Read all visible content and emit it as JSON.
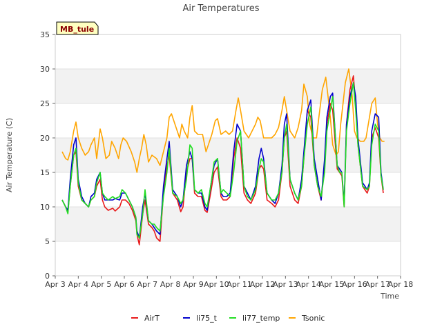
{
  "chart_data": {
    "type": "line",
    "title": "Air Temperatures",
    "xlabel": "Time",
    "ylabel": "Air Temperature (C)",
    "tag": "MB_tule",
    "xlim": [
      3,
      18
    ],
    "ylim": [
      0,
      35
    ],
    "y_ticks": [
      0,
      5,
      10,
      15,
      20,
      25,
      30,
      35
    ],
    "x_ticks": [
      {
        "value": 3,
        "label": "Apr 3"
      },
      {
        "value": 4,
        "label": "Apr 4"
      },
      {
        "value": 5,
        "label": "Apr 5"
      },
      {
        "value": 6,
        "label": "Apr 6"
      },
      {
        "value": 7,
        "label": "Apr 7"
      },
      {
        "value": 8,
        "label": "Apr 8"
      },
      {
        "value": 9,
        "label": "Apr 9"
      },
      {
        "value": 10,
        "label": "Apr 10"
      },
      {
        "value": 11,
        "label": "Apr 11"
      },
      {
        "value": 12,
        "label": "Apr 12"
      },
      {
        "value": 13,
        "label": "Apr 13"
      },
      {
        "value": 14,
        "label": "Apr 14"
      },
      {
        "value": 15,
        "label": "Apr 15"
      },
      {
        "value": 16,
        "label": "Apr 16"
      },
      {
        "value": 17,
        "label": "Apr 17"
      },
      {
        "value": 18,
        "label": "Apr 18"
      }
    ],
    "grid": "horizontal bands",
    "legend_position": "bottom",
    "series": [
      {
        "name": "AirT",
        "color": "#e8191a",
        "x": [
          3.3,
          3.45,
          3.55,
          3.65,
          3.8,
          3.9,
          4.0,
          4.15,
          4.3,
          4.45,
          4.55,
          4.7,
          4.8,
          4.95,
          5.05,
          5.15,
          5.3,
          5.5,
          5.6,
          5.8,
          5.9,
          6.05,
          6.2,
          6.35,
          6.5,
          6.55,
          6.65,
          6.8,
          6.9,
          7.05,
          7.2,
          7.3,
          7.4,
          7.55,
          7.7,
          7.85,
          7.95,
          8.1,
          8.3,
          8.45,
          8.55,
          8.7,
          8.85,
          8.95,
          9.05,
          9.2,
          9.35,
          9.5,
          9.6,
          9.75,
          9.9,
          10.05,
          10.2,
          10.3,
          10.45,
          10.6,
          10.75,
          10.9,
          11.05,
          11.2,
          11.35,
          11.5,
          11.7,
          11.85,
          11.95,
          12.05,
          12.2,
          12.4,
          12.55,
          12.7,
          12.85,
          12.95,
          13.05,
          13.2,
          13.4,
          13.55,
          13.7,
          13.8,
          13.95,
          14.1,
          14.25,
          14.4,
          14.55,
          14.7,
          14.8,
          14.95,
          15.05,
          15.25,
          15.35,
          15.45,
          15.55,
          15.65,
          15.8,
          15.95,
          16.05,
          16.15,
          16.35,
          16.55,
          16.65,
          16.75,
          16.9,
          17.05,
          17.15,
          17.25
        ],
        "y": [
          11,
          10,
          9.2,
          13,
          17.5,
          18,
          13,
          11,
          10.5,
          10,
          11,
          11.5,
          13,
          14,
          11,
          10,
          9.5,
          9.8,
          9.4,
          10,
          11,
          11,
          10.5,
          9.5,
          8,
          6,
          4.5,
          9,
          11,
          7.5,
          7,
          6.5,
          5.5,
          5,
          12,
          16,
          17.5,
          12,
          11,
          9.3,
          10,
          15,
          17,
          17,
          12,
          11.5,
          11.5,
          9.5,
          9.2,
          12,
          15,
          15.8,
          11.5,
          11,
          11,
          11.5,
          17,
          20,
          18.5,
          12,
          11,
          10.5,
          12,
          15.5,
          16,
          15.5,
          11,
          10.5,
          10,
          11,
          15,
          20,
          21,
          13,
          11,
          10.5,
          13,
          17,
          24,
          23,
          16,
          13,
          11,
          16,
          22,
          25,
          24,
          15.5,
          15,
          14.5,
          10,
          22,
          27,
          29,
          25,
          19,
          13,
          12,
          13,
          20,
          21.5,
          20,
          14.5,
          12
        ]
      },
      {
        "name": "li75_t",
        "color": "#0000cc",
        "x": [
          3.3,
          3.45,
          3.55,
          3.65,
          3.8,
          3.9,
          4.0,
          4.15,
          4.3,
          4.45,
          4.55,
          4.7,
          4.8,
          4.95,
          5.05,
          5.15,
          5.3,
          5.5,
          5.6,
          5.8,
          5.9,
          6.05,
          6.2,
          6.35,
          6.5,
          6.55,
          6.65,
          6.8,
          6.9,
          7.05,
          7.2,
          7.3,
          7.4,
          7.55,
          7.7,
          7.85,
          7.95,
          8.1,
          8.3,
          8.45,
          8.55,
          8.7,
          8.85,
          8.95,
          9.05,
          9.2,
          9.35,
          9.5,
          9.6,
          9.75,
          9.9,
          10.05,
          10.2,
          10.3,
          10.45,
          10.6,
          10.75,
          10.9,
          11.05,
          11.2,
          11.35,
          11.5,
          11.7,
          11.85,
          11.95,
          12.05,
          12.2,
          12.4,
          12.55,
          12.7,
          12.85,
          12.95,
          13.05,
          13.2,
          13.4,
          13.55,
          13.7,
          13.8,
          13.95,
          14.1,
          14.25,
          14.4,
          14.55,
          14.7,
          14.8,
          14.95,
          15.05,
          15.25,
          15.35,
          15.45,
          15.55,
          15.65,
          15.8,
          15.95,
          16.05,
          16.15,
          16.35,
          16.55,
          16.65,
          16.75,
          16.9,
          17.05,
          17.15,
          17.25
        ],
        "y": [
          11,
          10,
          9.5,
          14,
          19,
          20,
          14,
          11.5,
          10.5,
          10,
          11.5,
          12,
          14,
          15,
          12,
          11,
          11,
          11,
          11.2,
          11,
          12,
          12,
          11,
          10,
          8.5,
          6.5,
          5.5,
          10,
          12,
          8,
          7.5,
          7,
          6.5,
          6,
          13,
          17,
          19.5,
          12.5,
          11.5,
          10,
          11,
          16,
          18,
          17,
          12.5,
          12,
          12,
          10,
          9.5,
          13,
          16,
          17,
          12,
          11.5,
          11.5,
          12,
          18,
          22,
          21,
          13,
          12,
          11,
          13,
          17,
          18.5,
          17,
          12,
          11,
          10.5,
          12,
          16,
          22,
          23.5,
          14,
          12,
          11,
          14,
          18,
          24,
          25.5,
          17,
          14,
          11,
          17,
          23,
          26,
          26.5,
          16,
          15.5,
          15,
          10.5,
          22,
          26,
          28,
          26,
          20,
          13.5,
          12.5,
          13.5,
          21,
          23.5,
          23,
          15,
          12.5
        ]
      },
      {
        "name": "li77_temp",
        "color": "#22dd22",
        "x": [
          3.3,
          3.45,
          3.55,
          3.65,
          3.8,
          3.9,
          4.0,
          4.15,
          4.3,
          4.45,
          4.55,
          4.7,
          4.8,
          4.95,
          5.05,
          5.15,
          5.3,
          5.5,
          5.6,
          5.8,
          5.9,
          6.05,
          6.2,
          6.35,
          6.5,
          6.55,
          6.65,
          6.8,
          6.9,
          7.05,
          7.2,
          7.3,
          7.4,
          7.55,
          7.7,
          7.85,
          7.95,
          8.1,
          8.3,
          8.45,
          8.55,
          8.7,
          8.85,
          8.95,
          9.05,
          9.2,
          9.35,
          9.5,
          9.6,
          9.75,
          9.9,
          10.05,
          10.2,
          10.3,
          10.45,
          10.6,
          10.75,
          10.9,
          11.05,
          11.2,
          11.35,
          11.5,
          11.7,
          11.85,
          11.95,
          12.05,
          12.2,
          12.4,
          12.55,
          12.7,
          12.85,
          12.95,
          13.05,
          13.2,
          13.4,
          13.55,
          13.7,
          13.8,
          13.95,
          14.1,
          14.25,
          14.4,
          14.55,
          14.7,
          14.8,
          14.95,
          15.05,
          15.25,
          15.35,
          15.45,
          15.55,
          15.65,
          15.8,
          15.95,
          16.05,
          16.15,
          16.35,
          16.55,
          16.65,
          16.75,
          16.9,
          17.05,
          17.15,
          17.25
        ],
        "y": [
          11,
          10,
          9,
          13,
          17.5,
          18.5,
          13.5,
          11,
          10.5,
          10,
          11,
          11.5,
          13.5,
          15,
          12,
          11.5,
          11,
          11.5,
          11.2,
          11.5,
          12.5,
          12,
          11,
          10,
          8.5,
          6,
          5.5,
          9,
          12.5,
          8,
          7.5,
          7.5,
          7,
          6.5,
          11.5,
          15,
          18.5,
          12,
          11.5,
          10.5,
          11,
          14,
          19,
          18.5,
          12.5,
          12,
          12.5,
          10.5,
          10,
          13,
          16.5,
          17,
          12,
          12.5,
          12,
          11.5,
          15,
          19.5,
          21,
          13,
          11.5,
          11,
          12.5,
          15.5,
          17,
          16.5,
          12,
          11,
          11,
          12,
          15,
          20,
          22,
          14,
          12,
          11,
          13,
          17,
          22,
          24.5,
          16,
          13,
          11.5,
          15,
          21,
          24,
          26,
          16,
          15,
          15,
          10,
          21,
          25,
          28,
          24,
          19,
          13,
          12.5,
          13,
          19,
          22,
          21,
          14.5,
          12.5
        ]
      },
      {
        "name": "Tsonic",
        "color": "#ffa500",
        "x": [
          3.3,
          3.45,
          3.55,
          3.65,
          3.8,
          3.9,
          4.0,
          4.15,
          4.3,
          4.45,
          4.55,
          4.7,
          4.8,
          4.95,
          5.05,
          5.2,
          5.35,
          5.45,
          5.6,
          5.75,
          5.85,
          5.95,
          6.1,
          6.3,
          6.45,
          6.55,
          6.65,
          6.75,
          6.85,
          6.95,
          7.05,
          7.2,
          7.4,
          7.55,
          7.7,
          7.85,
          7.95,
          8.05,
          8.2,
          8.4,
          8.5,
          8.6,
          8.75,
          8.85,
          8.95,
          9.05,
          9.2,
          9.4,
          9.55,
          9.65,
          9.8,
          9.95,
          10.05,
          10.2,
          10.4,
          10.55,
          10.7,
          10.85,
          10.95,
          11.05,
          11.2,
          11.4,
          11.55,
          11.7,
          11.8,
          11.9,
          12.05,
          12.2,
          12.4,
          12.55,
          12.7,
          12.85,
          12.95,
          13.05,
          13.2,
          13.4,
          13.55,
          13.7,
          13.8,
          13.95,
          14.05,
          14.2,
          14.35,
          14.45,
          14.6,
          14.75,
          14.85,
          14.95,
          15.05,
          15.2,
          15.3,
          15.4,
          15.5,
          15.6,
          15.75,
          15.9,
          16.0,
          16.1,
          16.25,
          16.4,
          16.5,
          16.6,
          16.75,
          16.9,
          17.0,
          17.1,
          17.2,
          17.3
        ],
        "y": [
          18,
          17,
          16.8,
          18,
          21,
          22.3,
          20,
          18.5,
          17.5,
          18,
          19,
          20,
          17,
          21.3,
          20,
          17,
          17.5,
          19.5,
          18.5,
          17,
          19,
          20,
          19.5,
          18,
          16.5,
          15,
          17,
          18.5,
          20.5,
          19,
          16.5,
          17.5,
          17,
          16,
          18,
          20,
          23,
          23.5,
          22,
          20,
          22,
          21,
          20,
          23,
          24.7,
          21,
          20.5,
          20.5,
          18,
          19,
          20.5,
          22.5,
          22.8,
          20.5,
          21,
          20.5,
          21,
          24,
          25.8,
          24,
          21,
          20,
          21,
          22,
          23,
          22.5,
          20,
          20,
          20,
          20.5,
          21.5,
          24,
          26,
          24,
          21,
          20,
          21.5,
          24,
          27.8,
          26,
          22,
          20,
          20,
          23,
          27,
          28.8,
          26,
          23,
          19,
          17.5,
          18,
          22,
          25,
          28,
          30,
          26,
          21,
          20,
          19.5,
          19.5,
          20,
          22,
          25,
          25.8,
          22,
          20,
          19.5,
          19.5
        ]
      }
    ]
  }
}
